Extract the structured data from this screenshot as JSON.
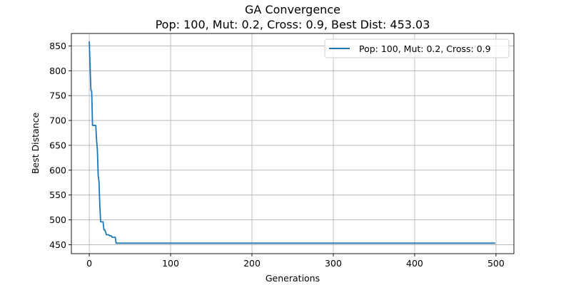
{
  "chart_data": {
    "type": "line",
    "title": "GA Convergence",
    "subtitle": "Pop: 100, Mut: 0.2, Cross: 0.9, Best Dist: 453.03",
    "xlabel": "Generations",
    "ylabel": "Best Distance",
    "xlim": [
      -22,
      522
    ],
    "ylim": [
      432,
      875
    ],
    "xticks": [
      0,
      100,
      200,
      300,
      400,
      500
    ],
    "yticks": [
      450,
      500,
      550,
      600,
      650,
      700,
      750,
      800,
      850
    ],
    "grid": true,
    "legend_position": "top-right",
    "series": [
      {
        "name": "Pop: 100, Mut: 0.2, Cross: 0.9",
        "color": "#1f77b4",
        "x": [
          0,
          1,
          2,
          3,
          4,
          5,
          6,
          7,
          8,
          9,
          10,
          11,
          12,
          13,
          14,
          15,
          16,
          17,
          18,
          19,
          20,
          21,
          22,
          23,
          24,
          25,
          26,
          27,
          28,
          29,
          30,
          31,
          32,
          33,
          34,
          499
        ],
        "y": [
          859,
          810,
          762,
          757,
          690,
          690,
          690,
          690,
          690,
          660,
          640,
          588,
          577,
          527,
          496,
          496,
          496,
          496,
          480,
          480,
          476,
          470,
          470,
          470,
          470,
          468,
          468,
          468,
          465,
          465,
          465,
          465,
          465,
          453.03,
          453.03,
          453.03
        ]
      }
    ]
  }
}
